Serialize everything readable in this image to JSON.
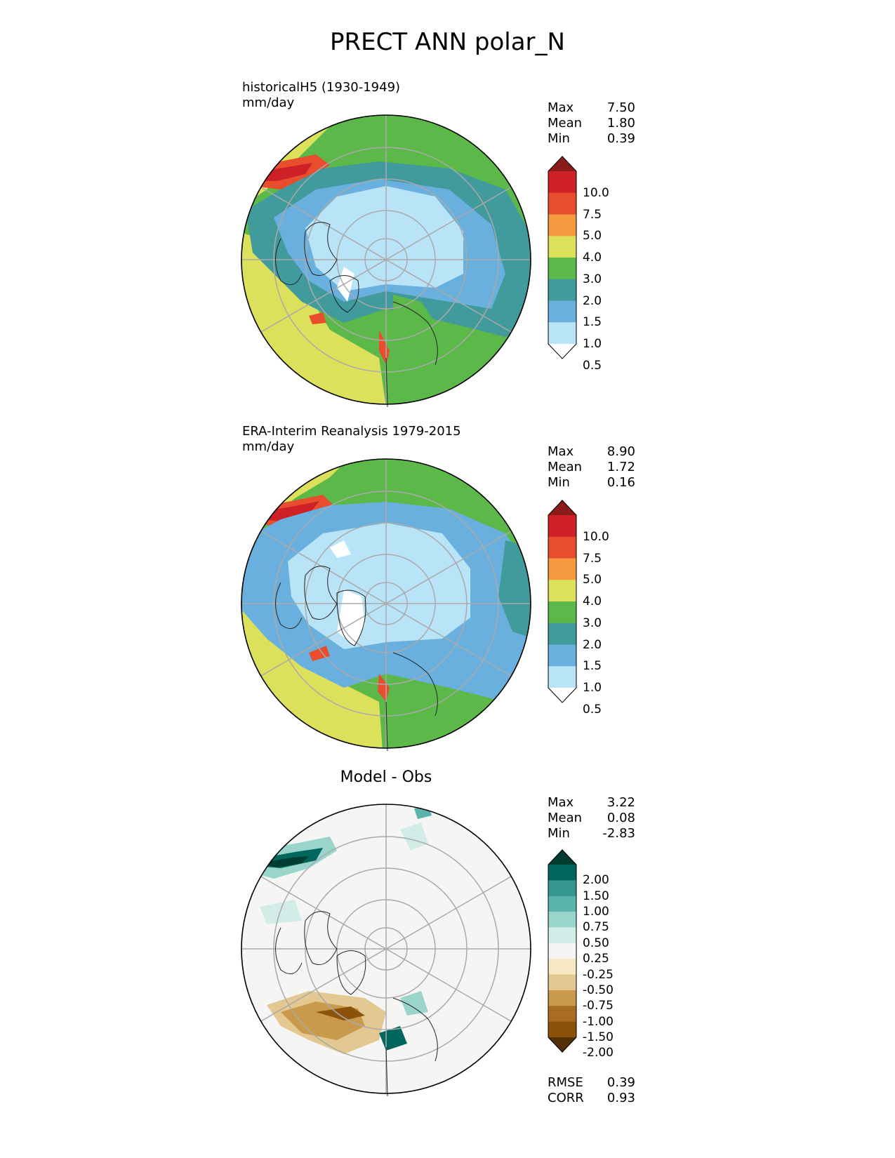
{
  "title": "PRECT ANN polar_N",
  "panels": [
    {
      "title_line1": "historicalH5 (1930-1949)",
      "title_line2": "mm/day",
      "stats": [
        {
          "label": "Max",
          "value": "7.50"
        },
        {
          "label": "Mean",
          "value": "1.80"
        },
        {
          "label": "Min",
          "value": "0.39"
        }
      ],
      "colorbar": {
        "levels": [
          "10.0",
          "7.5",
          "5.0",
          "4.0",
          "3.0",
          "2.0",
          "1.5",
          "1.0",
          "0.5"
        ],
        "colors": [
          "#8b1a1a",
          "#cd2027",
          "#e84d2e",
          "#f59a3e",
          "#dde05a",
          "#5bb849",
          "#419a9b",
          "#6ab0de",
          "#b9e3f7",
          "#ffffff"
        ]
      }
    },
    {
      "title_line1": "ERA-Interim Reanalysis 1979-2015",
      "title_line2": "mm/day",
      "stats": [
        {
          "label": "Max",
          "value": "8.90"
        },
        {
          "label": "Mean",
          "value": "1.72"
        },
        {
          "label": "Min",
          "value": "0.16"
        }
      ],
      "colorbar": {
        "levels": [
          "10.0",
          "7.5",
          "5.0",
          "4.0",
          "3.0",
          "2.0",
          "1.5",
          "1.0",
          "0.5"
        ],
        "colors": [
          "#8b1a1a",
          "#cd2027",
          "#e84d2e",
          "#f59a3e",
          "#dde05a",
          "#5bb849",
          "#419a9b",
          "#6ab0de",
          "#b9e3f7",
          "#ffffff"
        ]
      }
    },
    {
      "title_center": "Model - Obs",
      "stats": [
        {
          "label": "Max",
          "value": "3.22"
        },
        {
          "label": "Mean",
          "value": "0.08"
        },
        {
          "label": "Min",
          "value": "-2.83"
        }
      ],
      "colorbar": {
        "levels": [
          "2.00",
          "1.50",
          "1.00",
          "0.75",
          "0.50",
          "0.25",
          "-0.25",
          "-0.50",
          "-0.75",
          "-1.00",
          "-1.50",
          "-2.00"
        ],
        "colors": [
          "#003c30",
          "#01665e",
          "#35978f",
          "#5ab4ac",
          "#99d5cb",
          "#d2ece7",
          "#f5f5f3",
          "#f6e8c3",
          "#e4c892",
          "#c9994c",
          "#a86d21",
          "#8c510a",
          "#543005"
        ]
      },
      "metrics": [
        {
          "label": "RMSE",
          "value": "0.39"
        },
        {
          "label": "CORR",
          "value": "0.93"
        }
      ]
    }
  ]
}
